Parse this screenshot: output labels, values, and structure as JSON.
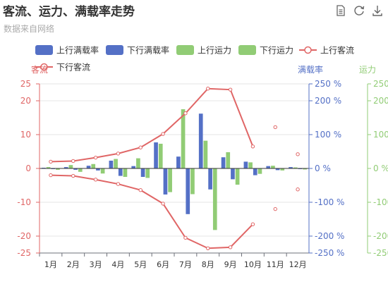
{
  "header": {
    "title": "客流、运力、满载率走势",
    "subtitle": "数据来自网络"
  },
  "toolbar": {
    "icons": [
      "data-view-icon",
      "refresh-icon",
      "download-icon"
    ]
  },
  "colors": {
    "bar_blue": "#5470c6",
    "bar_green": "#91cc75",
    "line_red": "#e06666",
    "axis_red": "#e06666",
    "axis_blue": "#5470c6",
    "axis_green": "#91cc75"
  },
  "chart_data": {
    "type": "bar",
    "categories": [
      "1月",
      "2月",
      "3月",
      "4月",
      "5月",
      "6月",
      "7月",
      "8月",
      "9月",
      "10月",
      "11月",
      "12月"
    ],
    "legend_position": "top",
    "grid": true,
    "axes": {
      "left": {
        "name": "客流",
        "range": [
          -25,
          25
        ],
        "ticks": [
          25,
          20,
          10,
          0,
          -10,
          -20,
          -25
        ]
      },
      "right1": {
        "name": "满载率",
        "range": [
          -250,
          250
        ],
        "ticks": [
          250,
          200,
          100,
          0,
          -100,
          -200,
          -250
        ],
        "suffix": " %"
      },
      "right2": {
        "name": "运力",
        "range": [
          -250,
          250
        ],
        "ticks": [
          250,
          200,
          100,
          0,
          -100,
          -200,
          -250
        ],
        "suffix": " %"
      }
    },
    "series": [
      {
        "name": "上行满载率",
        "kind": "bar",
        "axis": "right1",
        "color": "#5470c6",
        "values": [
          2,
          4,
          8,
          23,
          7,
          77,
          35,
          162,
          33,
          20,
          7,
          4
        ]
      },
      {
        "name": "下行满载率",
        "kind": "bar",
        "axis": "right1",
        "color": "#5470c6",
        "values": [
          -2,
          -4,
          -6,
          -22,
          -25,
          -77,
          -135,
          -62,
          -32,
          -20,
          -5,
          -2
        ]
      },
      {
        "name": "上行运力",
        "kind": "bar",
        "axis": "right2",
        "color": "#91cc75",
        "values": [
          4,
          10,
          13,
          28,
          30,
          73,
          175,
          82,
          48,
          18,
          8,
          3
        ]
      },
      {
        "name": "下行运力",
        "kind": "bar",
        "axis": "right2",
        "color": "#91cc75",
        "values": [
          -4,
          -10,
          -15,
          -25,
          -28,
          -70,
          -76,
          -182,
          -48,
          -16,
          -6,
          -3
        ]
      },
      {
        "name": "上行客流",
        "kind": "line",
        "axis": "left",
        "color": "#e06666",
        "values": [
          2.0,
          2.2,
          3.2,
          4.4,
          6.2,
          10.2,
          16.3,
          23.6,
          23.3,
          6.5,
          12.2,
          4.2
        ]
      },
      {
        "name": "下行客流",
        "kind": "line",
        "axis": "left",
        "color": "#e06666",
        "values": [
          -2.0,
          -2.2,
          -3.3,
          -4.6,
          -6.4,
          -10.4,
          -20.5,
          -23.6,
          -23.3,
          -16.5,
          -12.0,
          -6.2
        ]
      }
    ]
  }
}
